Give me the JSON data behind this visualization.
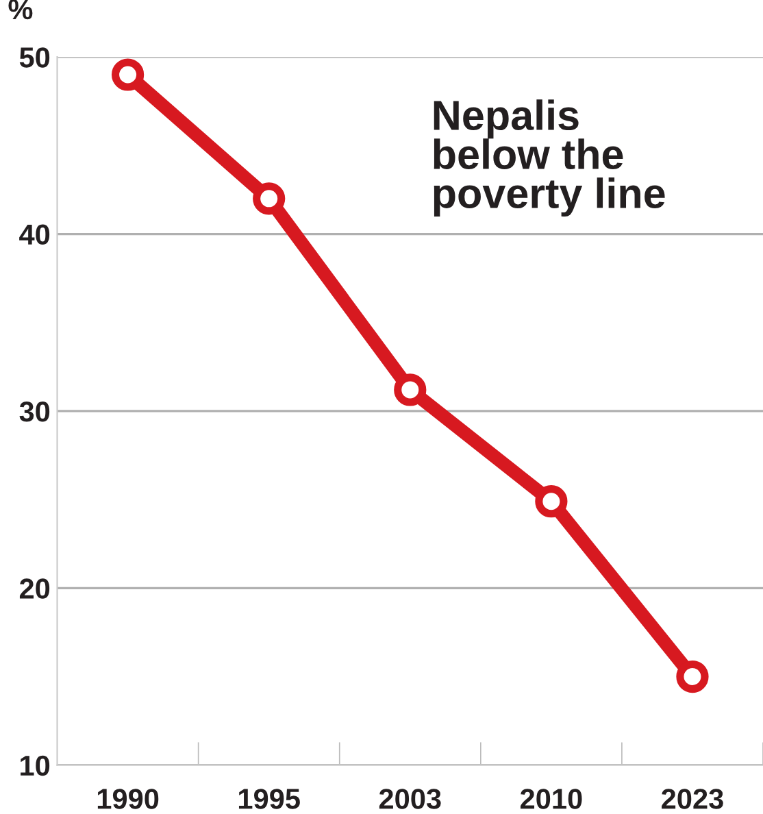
{
  "chart_data": {
    "type": "line",
    "title": "Nepalis\nbelow the\npoverty line",
    "ylabel": "%",
    "categories": [
      "1990",
      "1995",
      "2003",
      "2010",
      "2023"
    ],
    "series": [
      {
        "color": "#d71920",
        "values": [
          49,
          42,
          31.2,
          24.9,
          15
        ]
      }
    ],
    "ylim": [
      10,
      50
    ],
    "yticks": [
      10,
      20,
      30,
      40,
      50
    ],
    "grid": "y",
    "legend": false,
    "marker": "circle",
    "line_style": "solid"
  }
}
